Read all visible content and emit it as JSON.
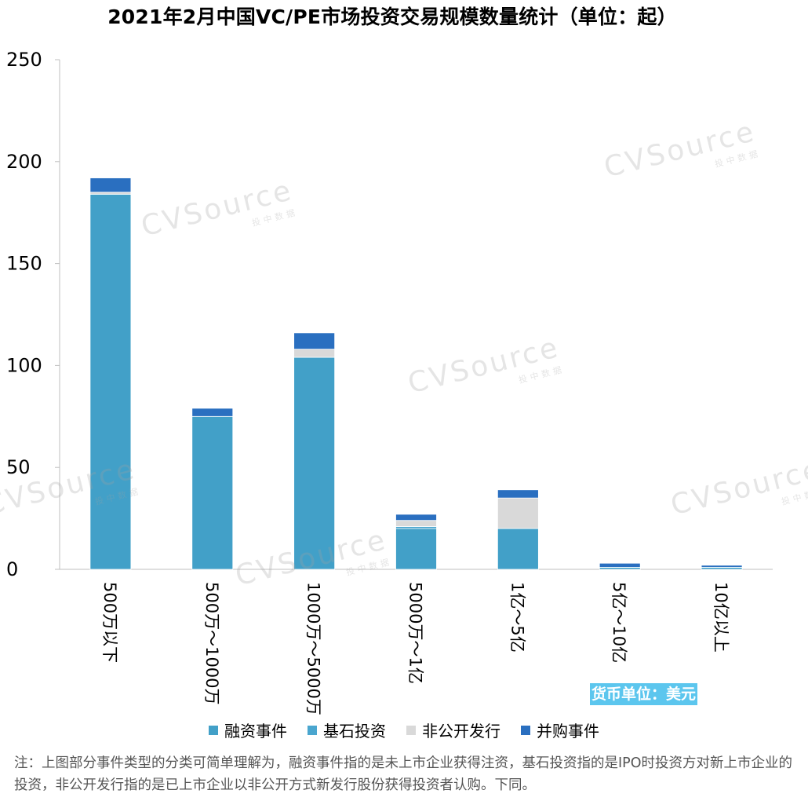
{
  "title": "2021年2月中国VC/PE市场投资交易规模数量统计（单位：起）",
  "currency_note": "货币单位：美元",
  "footnote": "注：上图部分事件类型的分类可简单理解为，融资事件指的是未上市企业获得注资，基石投资指的是IPO时投资方对新上市企业的投资，非公开发行指的是已上市企业以非公开方式新发行股份获得投资者认购。下同。",
  "watermark": {
    "brand": "CVSource",
    "sub": "投中数据"
  },
  "colors": {
    "financing": "#42a0c8",
    "cornerstone": "#4aa6cf",
    "private_placement": "#d9d9d9",
    "ma": "#2a6fc0"
  },
  "chart_data": {
    "type": "bar",
    "stacked": true,
    "categories": [
      "500万以下",
      "500万～1000万",
      "1000万～5000万",
      "5000万～1亿",
      "1亿～5亿",
      "5亿～10亿",
      "10亿以上"
    ],
    "series": [
      {
        "name": "融资事件",
        "values": [
          184,
          75,
          104,
          20,
          20,
          1,
          1
        ]
      },
      {
        "name": "基石投资",
        "values": [
          0,
          0,
          0,
          1,
          0,
          0,
          0
        ]
      },
      {
        "name": "非公开发行",
        "values": [
          1,
          0,
          4,
          3,
          15,
          0,
          0
        ]
      },
      {
        "name": "并购事件",
        "values": [
          7,
          4,
          8,
          3,
          4,
          2,
          1
        ]
      }
    ],
    "ylim": [
      0,
      250
    ],
    "yticks": [
      0,
      50,
      100,
      150,
      200,
      250
    ],
    "grid": false,
    "legend_position": "bottom"
  }
}
